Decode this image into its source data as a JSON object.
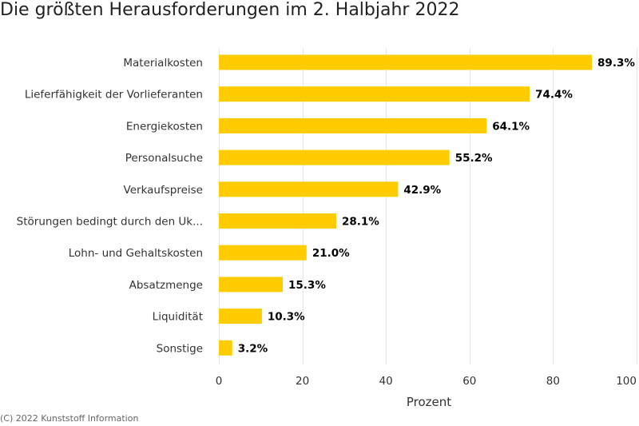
{
  "chart_data": {
    "type": "bar",
    "orientation": "horizontal",
    "title": "Die größten Herausforderungen im 2. Halbjahr 2022",
    "categories": [
      "Materialkosten",
      "Lieferfähigkeit der Vorlieferanten",
      "Energiekosten",
      "Personalsuche",
      "Verkaufspreise",
      "Störungen bedingt durch den Uk...",
      "Lohn- und Gehaltskosten",
      "Absatzmenge",
      "Liquidität",
      "Sonstige"
    ],
    "values": [
      89.3,
      74.4,
      64.1,
      55.2,
      42.9,
      28.1,
      21.0,
      15.3,
      10.3,
      3.2
    ],
    "data_labels": [
      "89.3%",
      "74.4%",
      "64.1%",
      "55.2%",
      "42.9%",
      "28.1%",
      "21.0%",
      "15.3%",
      "10.3%",
      "3.2%"
    ],
    "xlabel": "Prozent",
    "xlim": [
      0,
      100
    ],
    "xticks": [
      0,
      20,
      40,
      60,
      80,
      100
    ],
    "grid": true,
    "bar_color": "#FFCC00",
    "grid_color": "#e6e6e6"
  },
  "credits": "(C) 2022 Kunststoff Information"
}
